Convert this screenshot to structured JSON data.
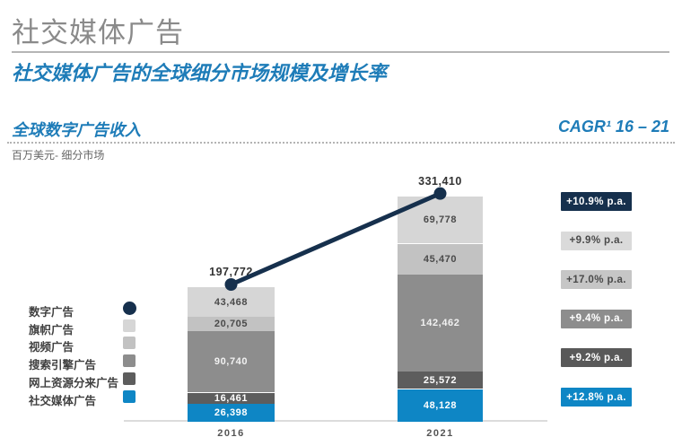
{
  "header": {
    "title": "社交媒体广告",
    "subtitle": "社交媒体广告的全球细分市场规模及增长率"
  },
  "section": {
    "left_label": "全球数字广告收入",
    "cagr_label": "CAGR¹ 16 – 21",
    "unit_label": "百万美元- 细分市场"
  },
  "colors": {
    "navy": "#16304d",
    "blue": "#0e86c5",
    "title_gray": "#8a8a8a",
    "accent_blue_text": "#1e7cb8"
  },
  "chart_data": {
    "type": "bar",
    "stacked": true,
    "title": "全球数字广告收入",
    "unit": "百万美元- 细分市场",
    "categories": [
      "2016",
      "2021"
    ],
    "legend_position": "left",
    "grid": false,
    "totals": {
      "name": "数字广告",
      "values": [
        197772,
        331410
      ],
      "labels": [
        "197,772",
        "331,410"
      ],
      "cagr": "+10.9% p.a.",
      "color": "#16304d",
      "badge_text_color": "#ffffff"
    },
    "series": [
      {
        "name": "旗帜广告",
        "values": [
          43468,
          69778
        ],
        "labels": [
          "43,468",
          "69,778"
        ],
        "cagr": "+9.9% p.a.",
        "color": "#d6d6d6",
        "text_color": "#4a4a4a",
        "badge_color": "#dadada",
        "badge_text_color": "#4a4a4a"
      },
      {
        "name": "视频广告",
        "values": [
          20705,
          45470
        ],
        "labels": [
          "20,705",
          "45,470"
        ],
        "cagr": "+17.0% p.a.",
        "color": "#c2c2c2",
        "text_color": "#4a4a4a",
        "badge_color": "#c6c6c6",
        "badge_text_color": "#4a4a4a"
      },
      {
        "name": "搜索引擎广告",
        "values": [
          90740,
          142462
        ],
        "labels": [
          "90,740",
          "142,462"
        ],
        "cagr": "+9.4% p.a.",
        "color": "#8d8d8d",
        "text_color": "#f2f2f2",
        "badge_color": "#8d8d8d",
        "badge_text_color": "#ffffff"
      },
      {
        "name": "网上资源分来广告",
        "values": [
          16461,
          25572
        ],
        "labels": [
          "16,461",
          "25,572"
        ],
        "cagr": "+9.2% p.a.",
        "color": "#5d5d5d",
        "text_color": "#ffffff",
        "badge_color": "#595959",
        "badge_text_color": "#ffffff"
      },
      {
        "name": "社交媒体广告",
        "values": [
          26398,
          48128
        ],
        "labels": [
          "26,398",
          "48,128"
        ],
        "cagr": "+12.8% p.a.",
        "color": "#0e86c5",
        "text_color": "#ffffff",
        "badge_color": "#0e86c5",
        "badge_text_color": "#ffffff"
      }
    ]
  }
}
